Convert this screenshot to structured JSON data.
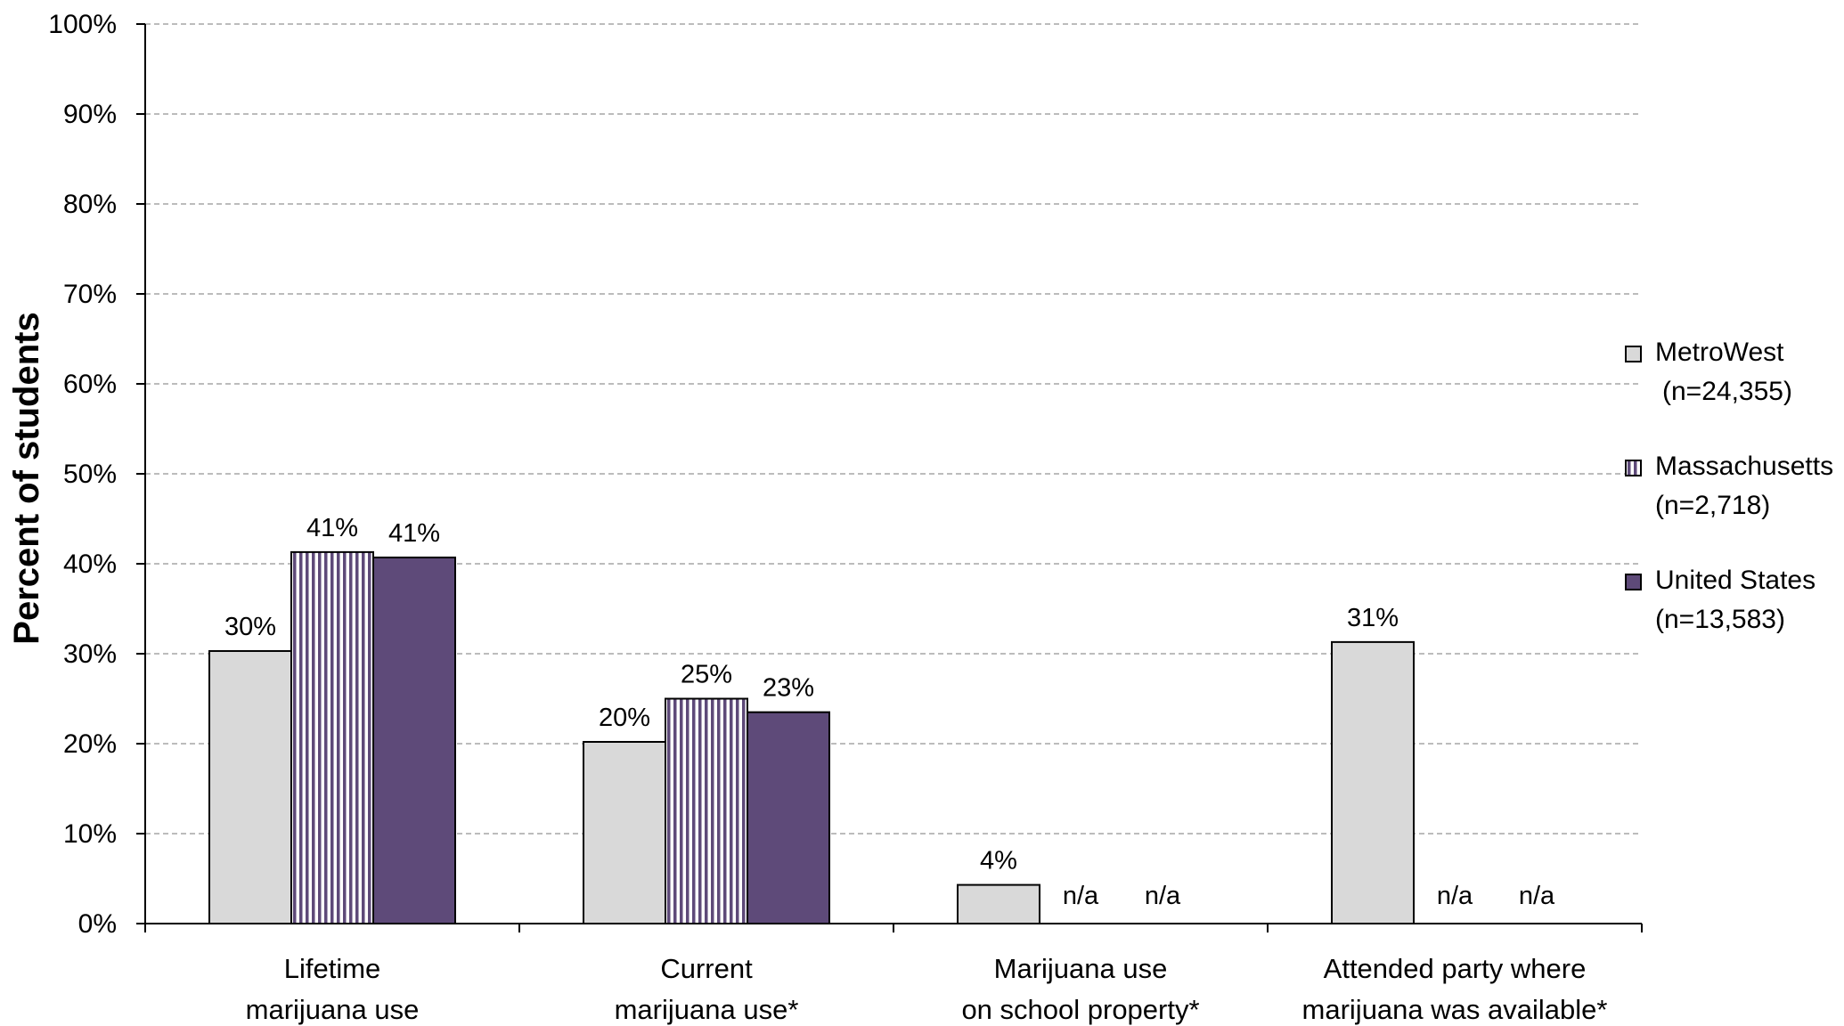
{
  "chart_data": {
    "type": "bar",
    "ylabel": "Percent of students",
    "ylim": [
      0,
      100
    ],
    "yticks": [
      0,
      10,
      20,
      30,
      40,
      50,
      60,
      70,
      80,
      90,
      100
    ],
    "ytick_suffix": "%",
    "grid": true,
    "legend_position": "right",
    "categories": [
      [
        "Lifetime",
        "marijuana use"
      ],
      [
        "Current",
        "marijuana use*"
      ],
      [
        "Marijuana use",
        "on school property*"
      ],
      [
        "Attended party where",
        "marijuana was available*"
      ]
    ],
    "series": [
      {
        "name": "MetroWest",
        "legend_lines": [
          "MetroWest",
          "(n=24,355)"
        ],
        "fill": "#d9d9d9",
        "pattern": "solid",
        "values": [
          30.3,
          20.2,
          4.3,
          31.3
        ],
        "labels": [
          "30%",
          "20%",
          "4%",
          "31%"
        ]
      },
      {
        "name": "Massachusetts",
        "legend_lines": [
          "Massachusetts",
          "(n=2,718)"
        ],
        "fill": "#5e4a79",
        "pattern": "vertical-stripes",
        "values": [
          41.3,
          25.0,
          null,
          null
        ],
        "labels": [
          "41%",
          "25%",
          "n/a",
          "n/a"
        ]
      },
      {
        "name": "United States",
        "legend_lines": [
          "United States",
          "(n=13,583)"
        ],
        "fill": "#5e4a79",
        "pattern": "solid",
        "values": [
          40.7,
          23.5,
          null,
          null
        ],
        "labels": [
          "41%",
          "23%",
          "n/a",
          "n/a"
        ]
      }
    ]
  }
}
